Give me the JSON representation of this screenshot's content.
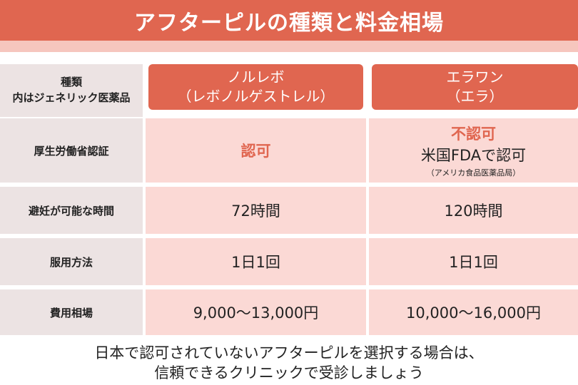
{
  "banner": {
    "title": "アフターピルの種類と料金相場"
  },
  "table": {
    "header": {
      "label_line1": "種類",
      "label_line2": "内はジェネリック医薬品",
      "col1_line1": "ノルレボ",
      "col1_line2": "（レボノルゲストレル）",
      "col2_line1": "エラワン",
      "col2_line2": "（エラ）"
    },
    "rows": [
      {
        "label": "厚生労働省認証",
        "col1": "認可",
        "col2_status": "不認可",
        "col2_detail": "米国FDAで認可",
        "col2_note": "（アメリカ食品医薬品局）"
      },
      {
        "label": "避妊が可能な時間",
        "col1": "72時間",
        "col2": "120時間"
      },
      {
        "label": "服用方法",
        "col1": "1日1回",
        "col2": "1日1回"
      },
      {
        "label": "費用相場",
        "col1": "9,000〜13,000円",
        "col2": "10,000〜16,000円"
      }
    ]
  },
  "footer": {
    "line1": "日本で認可されていないアフターピルを選択する場合は、",
    "line2": "信頼できるクリニックで受診しましょう"
  },
  "colors": {
    "accent": "#e06650",
    "accent_light": "#f6c6be",
    "value_bg": "#fbd9d5",
    "label_bg": "#ece3e3"
  }
}
